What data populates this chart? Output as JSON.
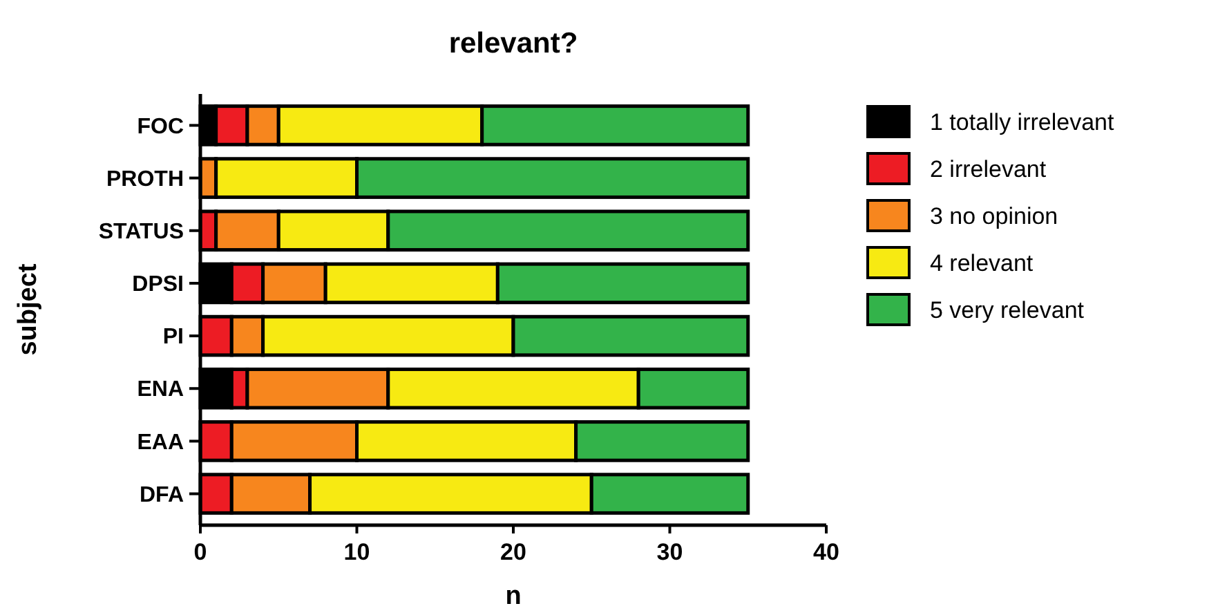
{
  "chart_data": {
    "type": "bar",
    "orientation": "horizontal",
    "stacked": true,
    "title": "relevant?",
    "xlabel": "n",
    "ylabel": "subject",
    "categories": [
      "FOC",
      "PROTH",
      "STATUS",
      "DPSI",
      "PI",
      "ENA",
      "EAA",
      "DFA"
    ],
    "series": [
      {
        "name": "1 totally irrelevant",
        "color": "#000000",
        "values": [
          1,
          0,
          0,
          2,
          0,
          2,
          0,
          0
        ]
      },
      {
        "name": "2 irrelevant",
        "color": "#ed1c24",
        "values": [
          2,
          0,
          1,
          2,
          2,
          1,
          2,
          2
        ]
      },
      {
        "name": "3 no opinion",
        "color": "#f7861e",
        "values": [
          2,
          1,
          4,
          4,
          2,
          9,
          8,
          5
        ]
      },
      {
        "name": "4 relevant",
        "color": "#f7ea12",
        "values": [
          13,
          9,
          7,
          11,
          16,
          16,
          14,
          18
        ]
      },
      {
        "name": "5 very relevant",
        "color": "#33b34a",
        "values": [
          17,
          25,
          23,
          16,
          15,
          7,
          11,
          10
        ]
      }
    ],
    "xlim": [
      0,
      40
    ],
    "xticks": [
      0,
      10,
      20,
      30,
      40
    ],
    "grid": false,
    "legend": "right"
  }
}
